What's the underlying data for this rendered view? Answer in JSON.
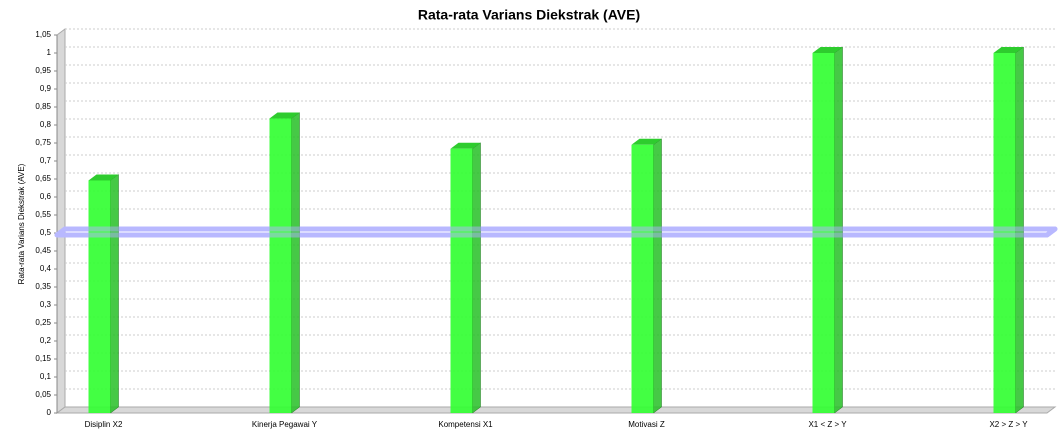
{
  "chart_data": {
    "type": "bar3d",
    "title": "Rata-rata Varians Diekstrak (AVE)",
    "y_label": "Rata-rata Varians Diekstrak (AVE)",
    "categories": [
      "Disiplin X2",
      "Kinerja Pegawai Y",
      "Kompetensi X1",
      "Motivasi Z",
      "X1 < Z > Y",
      "X2 > Z > Y"
    ],
    "values": [
      0.646,
      0.818,
      0.734,
      0.745,
      1.0,
      1.0
    ],
    "color": "#33ff33",
    "threshold": 0.5,
    "threshold_color": "#b8b8ff",
    "ylim": [
      0,
      1.05
    ],
    "yticks": [
      0,
      {
        "value": 0.05,
        "label": "0,05"
      },
      {
        "value": 0.1,
        "label": "0,1"
      },
      {
        "value": 0.15,
        "label": "0,15"
      },
      {
        "value": 0.2,
        "label": "0,2"
      },
      {
        "value": 0.25,
        "label": "0,25"
      },
      {
        "value": 0.3,
        "label": "0,3"
      },
      {
        "value": 0.35,
        "label": "0,35"
      },
      {
        "value": 0.4,
        "label": "0,4"
      },
      {
        "value": 0.45,
        "label": "0,45"
      },
      {
        "value": 0.5,
        "label": "0,5"
      },
      {
        "value": 0.55,
        "label": "0,55"
      },
      {
        "value": 0.6,
        "label": "0,6"
      },
      {
        "value": 0.65,
        "label": "0,65"
      },
      {
        "value": 0.7,
        "label": "0,7"
      },
      {
        "value": 0.75,
        "label": "0,75"
      },
      {
        "value": 0.8,
        "label": "0,8"
      },
      {
        "value": 0.85,
        "label": "0,85"
      },
      {
        "value": 0.9,
        "label": "0,9"
      },
      {
        "value": 0.95,
        "label": "0,95"
      },
      1,
      {
        "value": 1.05,
        "label": "1,05"
      }
    ],
    "grid": true
  }
}
